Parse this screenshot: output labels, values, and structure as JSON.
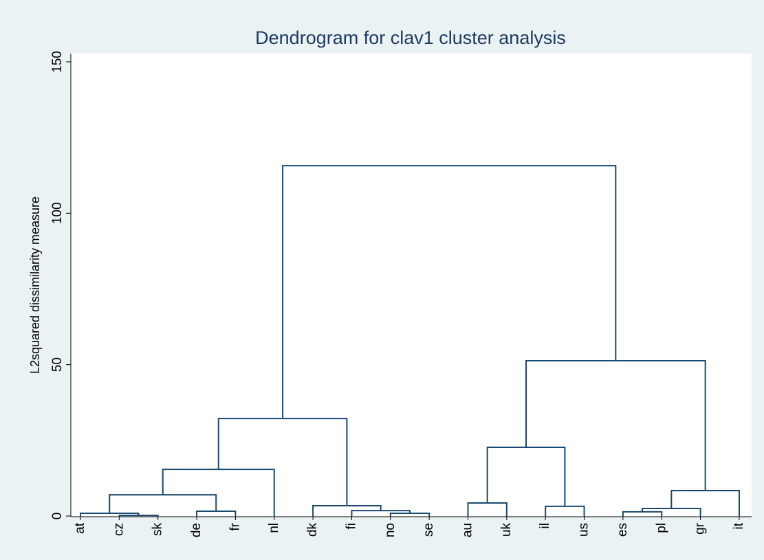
{
  "chart_data": {
    "type": "dendrogram",
    "title": "Dendrogram for clav1 cluster analysis",
    "y_label": "L2squared dissimilarity measure",
    "ylim": [
      0,
      150
    ],
    "yticks": [
      0,
      50,
      100,
      150
    ],
    "color": "#1a476f",
    "tree": {
      "height": 115.7,
      "children": [
        {
          "height": 32.2,
          "children": [
            {
              "height": 15.4,
              "children": [
                {
                  "height": 7.0,
                  "children": [
                    {
                      "height": 0.9,
                      "children": [
                        {
                          "label": "at"
                        },
                        {
                          "height": 0.2,
                          "children": [
                            {
                              "label": "cz"
                            },
                            {
                              "label": "sk"
                            }
                          ]
                        }
                      ]
                    },
                    {
                      "height": 1.6,
                      "children": [
                        {
                          "label": "de"
                        },
                        {
                          "label": "fr"
                        }
                      ]
                    }
                  ]
                },
                {
                  "label": "nl"
                }
              ]
            },
            {
              "height": 3.4,
              "children": [
                {
                  "label": "dk"
                },
                {
                  "height": 1.8,
                  "children": [
                    {
                      "label": "fi"
                    },
                    {
                      "height": 0.9,
                      "children": [
                        {
                          "label": "no"
                        },
                        {
                          "label": "se"
                        }
                      ]
                    }
                  ]
                }
              ]
            }
          ]
        },
        {
          "height": 51.3,
          "children": [
            {
              "height": 22.7,
              "children": [
                {
                  "height": 4.3,
                  "children": [
                    {
                      "label": "au"
                    },
                    {
                      "label": "uk"
                    }
                  ]
                },
                {
                  "height": 3.2,
                  "children": [
                    {
                      "label": "il"
                    },
                    {
                      "label": "us"
                    }
                  ]
                }
              ]
            },
            {
              "height": 8.4,
              "children": [
                {
                  "height": 2.5,
                  "children": [
                    {
                      "height": 1.4,
                      "children": [
                        {
                          "label": "es"
                        },
                        {
                          "label": "pl"
                        }
                      ]
                    },
                    {
                      "label": "gr"
                    }
                  ]
                },
                {
                  "label": "it"
                }
              ]
            }
          ]
        }
      ]
    }
  }
}
